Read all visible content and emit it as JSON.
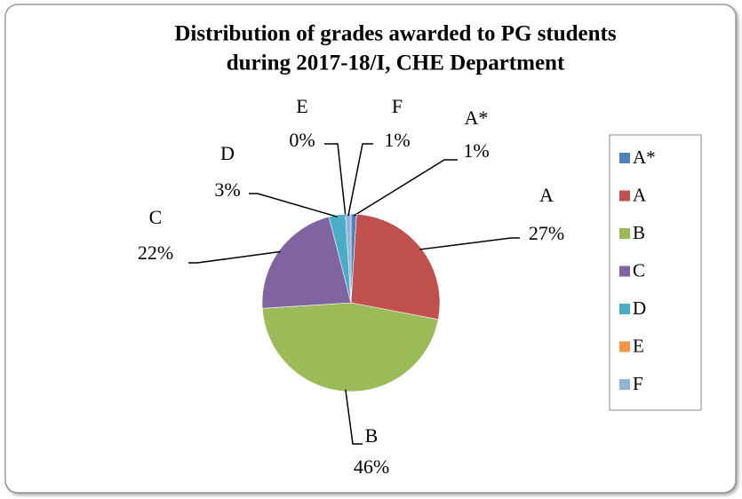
{
  "chart_data": {
    "type": "pie",
    "title": [
      "Distribution of grades awarded to PG students",
      "during 2017-18/I, CHE Department"
    ],
    "categories": [
      "A*",
      "A",
      "B",
      "C",
      "D",
      "E",
      "F"
    ],
    "values": [
      1,
      27,
      46,
      22,
      3,
      0,
      1
    ],
    "value_labels": [
      "1%",
      "27%",
      "46%",
      "22%",
      "3%",
      "0%",
      "1%"
    ],
    "colors": [
      "#4f81bd",
      "#c0504d",
      "#9bbb59",
      "#8064a2",
      "#4bacc6",
      "#f79646",
      "#95b3d7"
    ],
    "legend": "right"
  }
}
